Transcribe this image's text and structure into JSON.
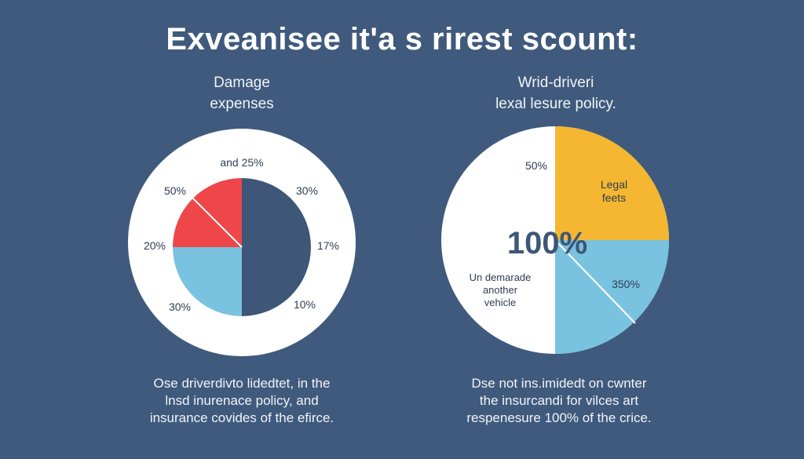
{
  "title": "Exveanisee it'a s rirest scount:",
  "colors": {
    "background": "#3f5a7c",
    "dark_blue": "#3e5677",
    "light_blue": "#79c2e0",
    "red": "#ef4649",
    "yellow": "#f5b731",
    "white": "#ffffff",
    "label_text": "#2f3e52"
  },
  "chart_data": [
    {
      "type": "pie",
      "title_lines": [
        "Damage",
        "expenses"
      ],
      "caption_lines": [
        "Ose driverdivto lidedtet, in the",
        "lnsd  inurenace policy, and",
        "insurance covides of the efirce."
      ],
      "labels": [
        "and 25%",
        "30%",
        "17%",
        "10%",
        "30%",
        "20%",
        "50%"
      ],
      "slices": [
        {
          "name": "",
          "value": 50,
          "color": "#3e5677"
        },
        {
          "name": "",
          "value": 25,
          "color": "#79c2e0"
        },
        {
          "name": "",
          "value": 12.5,
          "color": "#ef4649"
        },
        {
          "name": "",
          "value": 12.5,
          "color": "#ef4649"
        }
      ]
    },
    {
      "type": "pie",
      "title_lines": [
        "Wrid-driveri",
        "lexal lesure policy."
      ],
      "caption_lines": [
        "Dse not ins.imidedt on cwnter",
        "the insurcandi for vilces art",
        "respenesure 100% of the crice."
      ],
      "center_label": "100%",
      "labels": [
        "50%",
        "350%"
      ],
      "slice_labels": {
        "legal_fees": [
          "Legal",
          "feets"
        ],
        "vehicle": [
          "Un demarade",
          "another",
          "vehicle"
        ]
      },
      "slices": [
        {
          "name": "Legal feets",
          "value": 25,
          "color": "#f5b731"
        },
        {
          "name": "",
          "value": 12.5,
          "color": "#79c2e0"
        },
        {
          "name": "",
          "value": 12.5,
          "color": "#79c2e0"
        },
        {
          "name": "Un demarade another vehicle",
          "value": 50,
          "color": "#ffffff"
        }
      ]
    }
  ]
}
